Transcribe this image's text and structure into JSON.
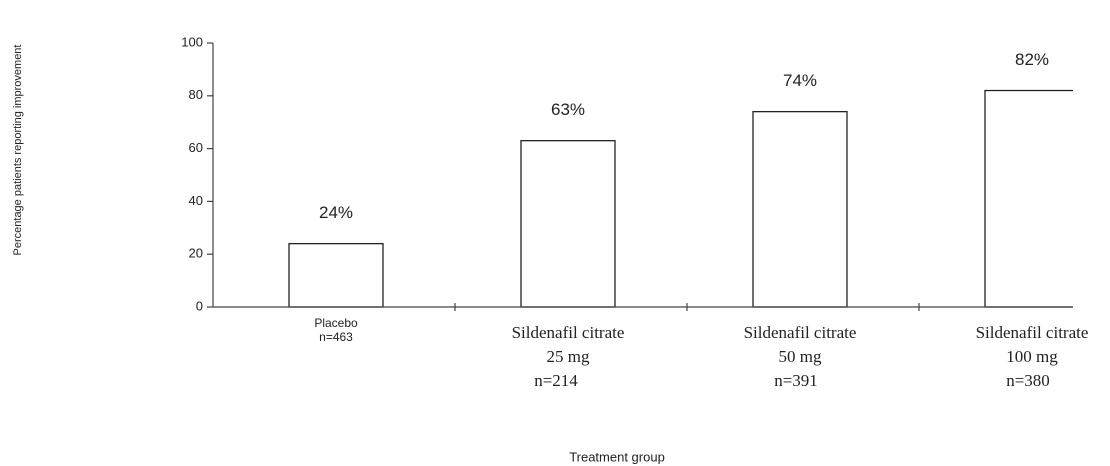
{
  "chart_data": {
    "type": "bar",
    "categories": [
      [
        "Placebo",
        "n=463"
      ],
      [
        "Sildenafil citrate",
        "25 mg",
        "n=214"
      ],
      [
        "Sildenafil citrate",
        "50 mg",
        "n=391"
      ],
      [
        "Sildenafil citrate",
        "100 mg",
        "n=380"
      ]
    ],
    "values": [
      24,
      63,
      74,
      82
    ],
    "value_labels": [
      "24%",
      "63%",
      "74%",
      "82%"
    ],
    "color": "#ffffff",
    "ylim": [
      0,
      100
    ],
    "yticks": [
      0,
      20,
      40,
      60,
      80,
      100
    ],
    "xlabel": "Treatment group",
    "ylabel": "Percentage patients reporting improvement"
  }
}
